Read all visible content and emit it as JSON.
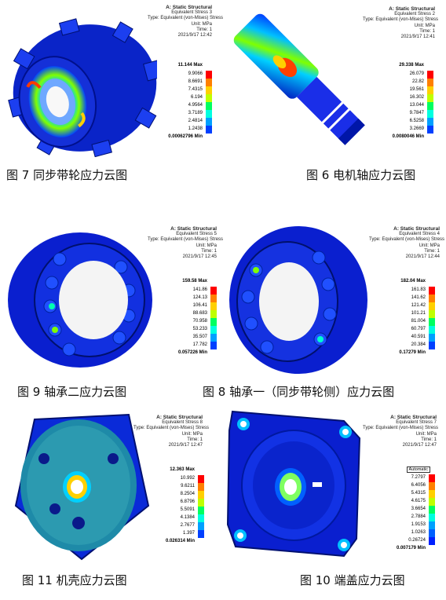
{
  "figures": [
    {
      "id": "fig7",
      "caption": "图 7 同步带轮应力云图",
      "header": [
        "A: Static Structural",
        "Equivalent Stress 3",
        "Type: Equivalent (von-Mises) Stress",
        "Unit: MPa",
        "Time: 1",
        "2021/9/17 12:42"
      ],
      "max": "11.144 Max",
      "min": "0.00062796 Min",
      "levels": [
        "9.9066",
        "8.6691",
        "7.4315",
        "6.194",
        "4.9564",
        "3.7189",
        "2.4814",
        "1.2438"
      ]
    },
    {
      "id": "fig6",
      "caption": "图 6 电机轴应力云图",
      "header": [
        "A: Static Structural",
        "Equivalent Stress 2",
        "Type: Equivalent (von-Mises) Stress",
        "Unit: MPa",
        "Time: 1",
        "2021/9/17 12:41"
      ],
      "max": "29.338 Max",
      "min": "0.0080046 Min",
      "levels": [
        "26.079",
        "22.82",
        "19.561",
        "16.302",
        "13.044",
        "9.7847",
        "6.5258",
        "3.2669"
      ]
    },
    {
      "id": "fig9",
      "caption": "图 9 轴承二应力云图",
      "header": [
        "A: Static Structural",
        "Equivalent Stress 5",
        "Type: Equivalent (von-Mises) Stress",
        "Unit: MPa",
        "Time: 1",
        "2021/9/17 12:45"
      ],
      "max": "159.58 Max",
      "min": "0.057226 Min",
      "levels": [
        "141.86",
        "124.13",
        "106.41",
        "88.683",
        "70.958",
        "53.233",
        "35.507",
        "17.782"
      ]
    },
    {
      "id": "fig8",
      "caption": "图 8 轴承一（同步带轮侧）应力云图",
      "header": [
        "A: Static Structural",
        "Equivalent Stress 4",
        "Type: Equivalent (von-Mises) Stress",
        "Unit: MPa",
        "Time: 1",
        "2021/9/17 12:44"
      ],
      "max": "182.04 Max",
      "min": "0.17279 Min",
      "levels": [
        "161.83",
        "141.62",
        "121.42",
        "101.21",
        "81.004",
        "60.797",
        "40.591",
        "20.384"
      ]
    },
    {
      "id": "fig11",
      "caption": "图 11 机壳应力云图",
      "header": [
        "A: Static Structural",
        "Equivalent Stress 8",
        "Type: Equivalent (von-Mises) Stress",
        "Unit: MPa",
        "Time: 1",
        "2021/9/17 12:47"
      ],
      "max": "12.363 Max",
      "min": "0.026314 Min",
      "levels": [
        "10.992",
        "9.6211",
        "8.2504",
        "6.8796",
        "5.5091",
        "4.1384",
        "2.7677",
        "1.397"
      ]
    },
    {
      "id": "fig10",
      "caption": "图 10 端盖应力云图",
      "header": [
        "A: Static Structural",
        "Equivalent Stress 7",
        "Type: Equivalent (von-Mises) Stress",
        "Unit: MPa",
        "Time: 1",
        "2021/9/17 12:47"
      ],
      "autoscale": "Automatic",
      "max": "",
      "min": "0.007179 Min",
      "levels": [
        "7.2797",
        "6.4056",
        "5.4315",
        "4.6175",
        "3.6654",
        "2.7884",
        "1.9153",
        "1.0263",
        "0.26724"
      ]
    }
  ],
  "scale_colors": [
    "#ff0000",
    "#ff7700",
    "#ffd000",
    "#dfff00",
    "#7fff00",
    "#00ff40",
    "#00ffd0",
    "#00b0ff",
    "#0050ff",
    "#0000ff"
  ]
}
